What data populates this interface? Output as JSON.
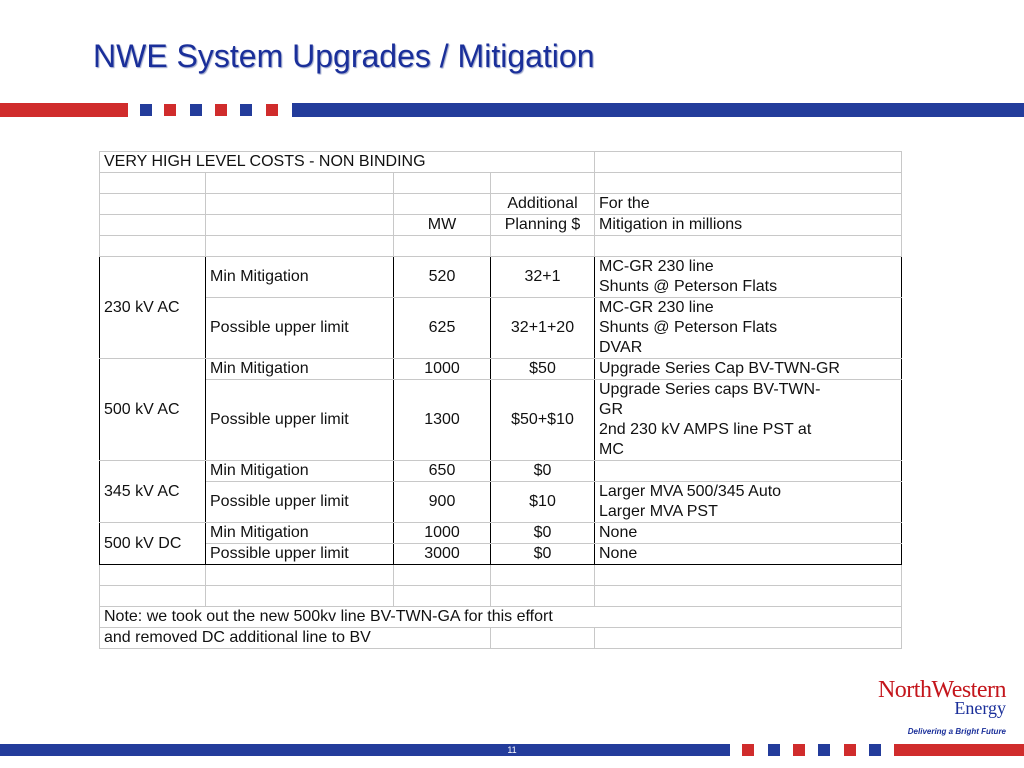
{
  "slide": {
    "title": "NWE System Upgrades / Mitigation",
    "page_number": "11"
  },
  "table": {
    "header_text": "VERY HIGH LEVEL COSTS - NON BINDING",
    "col_mw": "MW",
    "col_planning_1": "Additional",
    "col_planning_2": "Planning $",
    "col_for_1": "For the",
    "col_for_2": "Mitigation in millions",
    "groups": [
      {
        "label": "230 kV AC",
        "rows": [
          {
            "level": "Min Mitigation",
            "mw": "520",
            "cost": "32+1",
            "notes": [
              "MC-GR 230 line",
              "Shunts @ Peterson Flats"
            ]
          },
          {
            "level": "Possible upper limit",
            "mw": "625",
            "cost": "32+1+20",
            "notes": [
              "MC-GR 230 line",
              "Shunts @ Peterson Flats",
              "DVAR"
            ]
          }
        ]
      },
      {
        "label": "500 kV AC",
        "rows": [
          {
            "level": "Min Mitigation",
            "mw": "1000",
            "cost": "$50",
            "notes": [
              "Upgrade Series Cap BV-TWN-GR"
            ]
          },
          {
            "level": "Possible upper limit",
            "mw": "1300",
            "cost": "$50+$10",
            "notes": [
              "Upgrade Series caps BV-TWN-",
              "GR",
              "2nd 230 kV AMPS line PST at",
              "MC"
            ]
          }
        ]
      },
      {
        "label": "345 kV AC",
        "rows": [
          {
            "level": "Min Mitigation",
            "mw": "650",
            "cost": "$0",
            "notes": [
              ""
            ]
          },
          {
            "level": "Possible upper limit",
            "mw": "900",
            "cost": "$10",
            "notes": [
              "Larger MVA 500/345 Auto",
              "Larger MVA PST"
            ]
          }
        ]
      },
      {
        "label": "500 kV DC",
        "rows": [
          {
            "level": "Min Mitigation",
            "mw": "1000",
            "cost": "$0",
            "notes": [
              "None"
            ]
          },
          {
            "level": "Possible upper limit",
            "mw": "3000",
            "cost": "$0",
            "notes": [
              "None"
            ]
          }
        ]
      }
    ],
    "note_1": "Note:  we took out the new 500kv line BV-TWN-GA for this effort",
    "note_2": "and removed DC additional line to BV"
  },
  "logo": {
    "name": "NorthWestern",
    "sub": "Energy",
    "tagline": "Delivering a Bright Future"
  },
  "colors": {
    "title_blue": "#1a2f9a",
    "accent_red": "#d02c2c",
    "accent_blue": "#233c9b"
  }
}
